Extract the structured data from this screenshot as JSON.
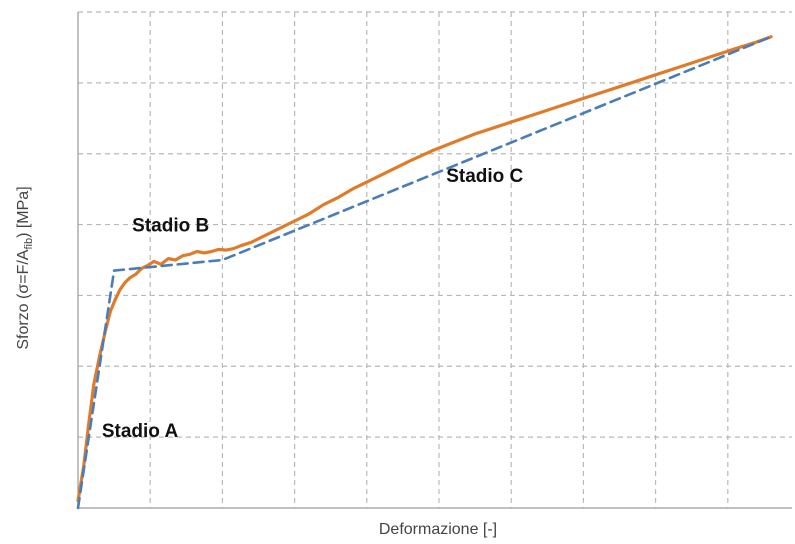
{
  "chart_data": {
    "type": "line",
    "title": "",
    "xlabel": "Deformazione [-]",
    "ylabel": {
      "prefix": "Sforzo  (σ=F/A",
      "subscript": "fib",
      "suffix": ") [MPa]"
    },
    "xlim": [
      0,
      10
    ],
    "ylim": [
      0,
      7
    ],
    "grid": true,
    "x_tick_count": 10,
    "y_tick_count": 7,
    "tick_labels_visible": false,
    "series": [
      {
        "style": "solid",
        "color": "#E07B2A",
        "x": [
          0,
          0.08,
          0.15,
          0.22,
          0.3,
          0.38,
          0.45,
          0.52,
          0.58,
          0.65,
          0.72,
          0.8,
          0.88,
          0.96,
          1.05,
          1.15,
          1.25,
          1.35,
          1.45,
          1.55,
          1.65,
          1.75,
          1.85,
          1.95,
          2.05,
          2.15,
          2.25,
          2.4,
          2.6,
          2.8,
          3.0,
          3.2,
          3.4,
          3.6,
          3.8,
          4.0,
          4.3,
          4.6,
          4.9,
          5.2,
          5.5,
          5.8,
          6.1,
          6.4,
          6.7,
          7.0,
          7.3,
          7.6,
          7.9,
          8.2,
          8.5,
          8.8,
          9.1,
          9.35,
          9.6
        ],
        "y": [
          0.1,
          0.6,
          1.2,
          1.75,
          2.15,
          2.5,
          2.78,
          2.95,
          3.08,
          3.18,
          3.25,
          3.3,
          3.38,
          3.42,
          3.48,
          3.44,
          3.52,
          3.5,
          3.56,
          3.58,
          3.62,
          3.6,
          3.62,
          3.65,
          3.64,
          3.66,
          3.7,
          3.75,
          3.85,
          3.95,
          4.05,
          4.15,
          4.28,
          4.38,
          4.5,
          4.6,
          4.75,
          4.9,
          5.04,
          5.16,
          5.28,
          5.38,
          5.48,
          5.58,
          5.68,
          5.78,
          5.88,
          5.98,
          6.08,
          6.18,
          6.28,
          6.38,
          6.48,
          6.56,
          6.65
        ]
      },
      {
        "style": "dashed",
        "color": "#4A7DB8",
        "x": [
          0,
          0.5,
          2.0,
          9.6
        ],
        "y": [
          0,
          3.35,
          3.5,
          6.65
        ]
      }
    ],
    "annotations": [
      {
        "text": "Stadio A",
        "x": 0.33,
        "y": 1.0
      },
      {
        "text": "Stadio B",
        "x": 0.75,
        "y": 3.9
      },
      {
        "text": "Stadio C",
        "x": 5.1,
        "y": 4.6
      }
    ]
  }
}
